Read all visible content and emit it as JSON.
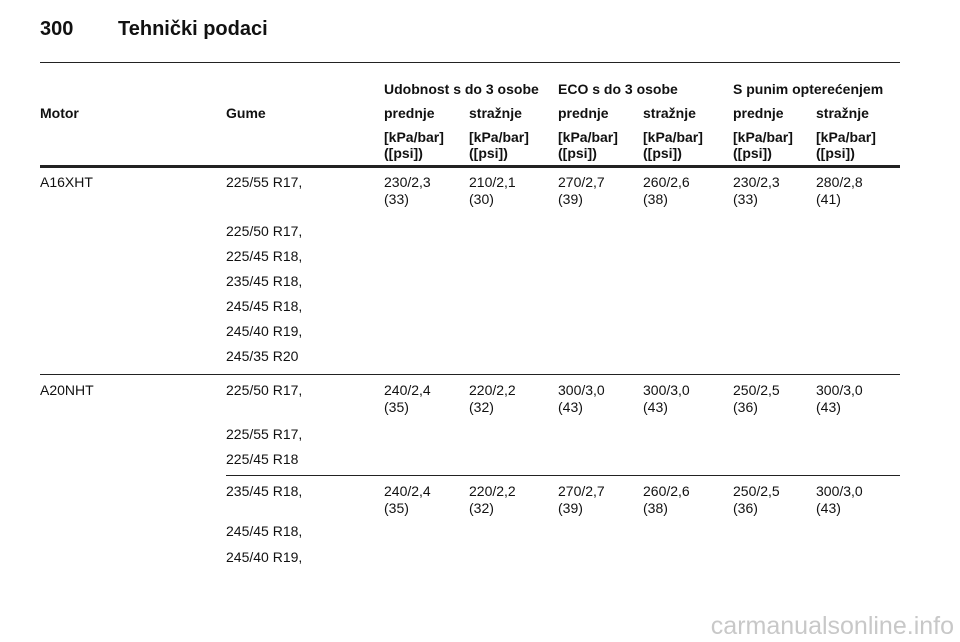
{
  "header": {
    "page_number": "300",
    "title": "Tehnički podaci"
  },
  "table": {
    "group_headers": [
      "Udobnost s do 3 osobe",
      "ECO s do 3 osobe",
      "S punim opterećenjem"
    ],
    "columns": [
      "Motor",
      "Gume",
      "prednje",
      "stražnje",
      "prednje",
      "stražnje",
      "prednje",
      "stražnje"
    ],
    "units": [
      [
        "[kPa/bar]",
        "([psi])"
      ],
      [
        "[kPa/bar]",
        "([psi])"
      ],
      [
        "[kPa/bar]",
        "([psi])"
      ],
      [
        "[kPa/bar]",
        "([psi])"
      ],
      [
        "[kPa/bar]",
        "([psi])"
      ],
      [
        "[kPa/bar]",
        "([psi])"
      ]
    ],
    "groups": [
      {
        "motor": "A16XHT",
        "tires": [
          "225/55 R17,",
          "225/50 R17,",
          "225/45 R18,",
          "235/45 R18,",
          "245/45 R18,",
          "245/40 R19,",
          "245/35 R20"
        ],
        "values": [
          [
            "230/2,3",
            "(33)"
          ],
          [
            "210/2,1",
            "(30)"
          ],
          [
            "270/2,7",
            "(39)"
          ],
          [
            "260/2,6",
            "(38)"
          ],
          [
            "230/2,3",
            "(33)"
          ],
          [
            "280/2,8",
            "(41)"
          ]
        ]
      },
      {
        "motor": "A20NHT",
        "tires": [
          "225/50 R17,",
          "225/55 R17,",
          "225/45 R18"
        ],
        "values": [
          [
            "240/2,4",
            "(35)"
          ],
          [
            "220/2,2",
            "(32)"
          ],
          [
            "300/3,0",
            "(43)"
          ],
          [
            "300/3,0",
            "(43)"
          ],
          [
            "250/2,5",
            "(36)"
          ],
          [
            "300/3,0",
            "(43)"
          ]
        ]
      },
      {
        "tires": [
          "235/45 R18,",
          "245/45 R18,",
          "245/40 R19,"
        ],
        "values": [
          [
            "240/2,4",
            "(35)"
          ],
          [
            "220/2,2",
            "(32)"
          ],
          [
            "270/2,7",
            "(39)"
          ],
          [
            "260/2,6",
            "(38)"
          ],
          [
            "250/2,5",
            "(36)"
          ],
          [
            "300/3,0",
            "(43)"
          ]
        ]
      }
    ]
  },
  "watermark": "carmanualsonline.info"
}
